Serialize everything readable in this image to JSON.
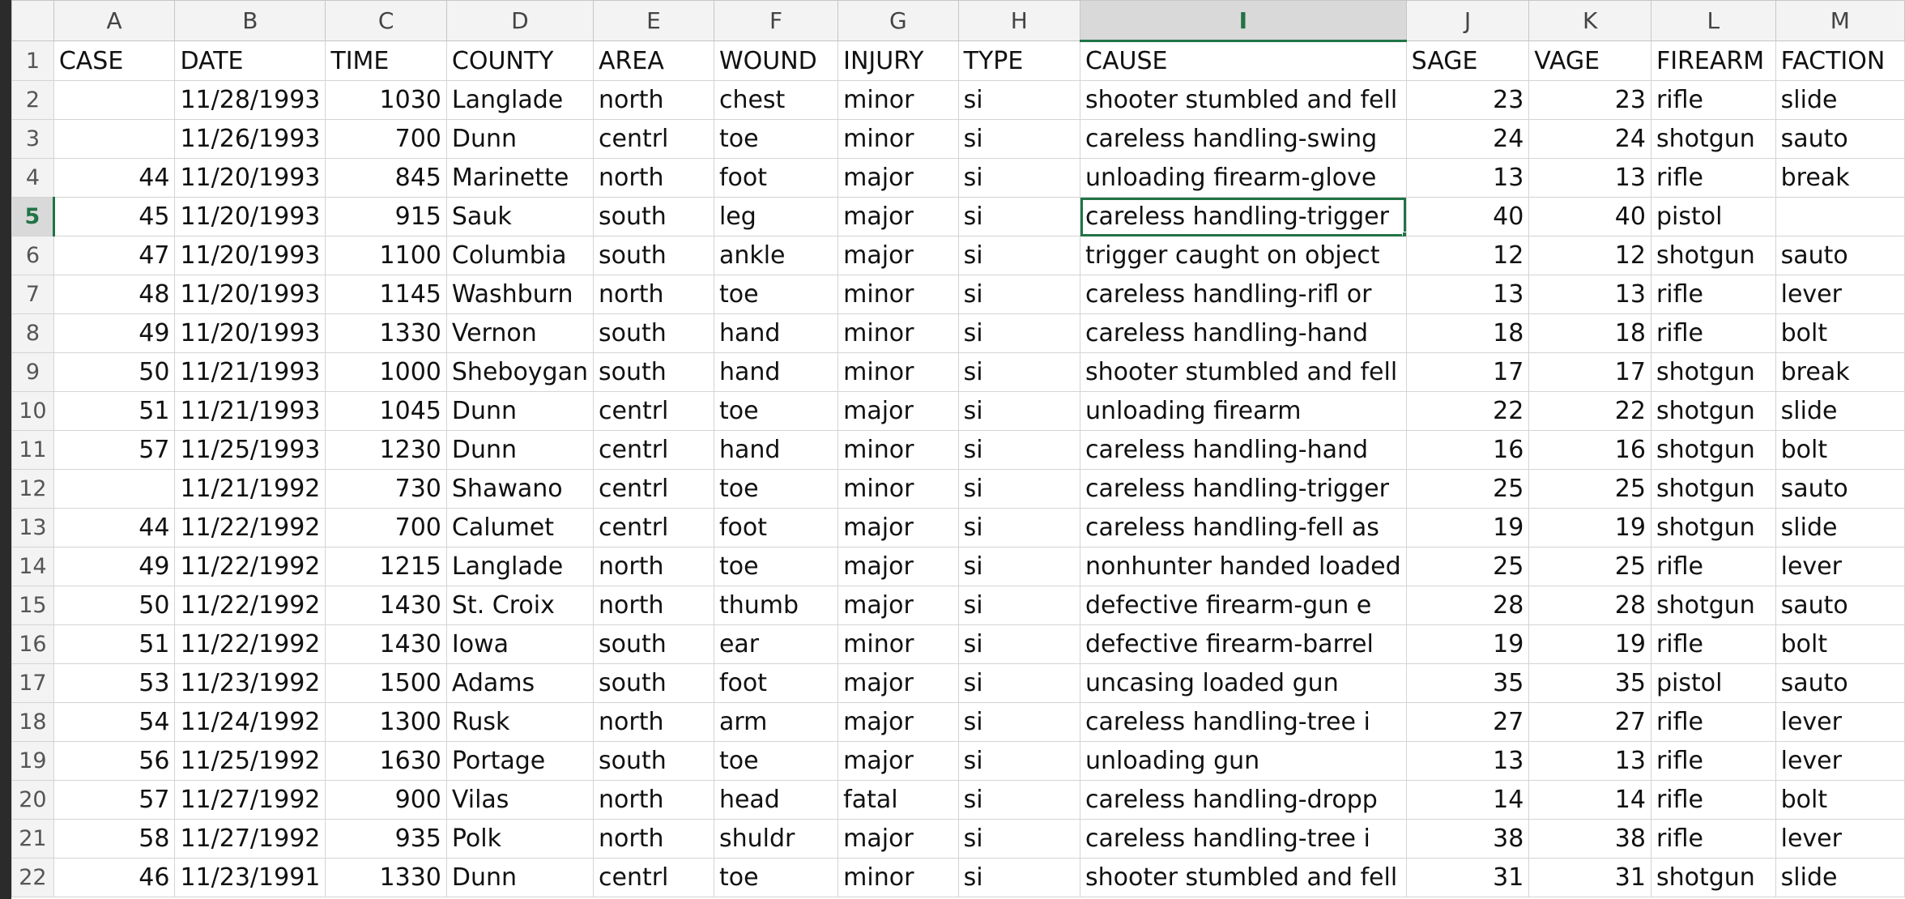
{
  "columns": [
    "A",
    "B",
    "C",
    "D",
    "E",
    "F",
    "G",
    "H",
    "I",
    "J",
    "K",
    "L",
    "M"
  ],
  "selected_column": "I",
  "selected_row": 5,
  "header_row": {
    "row_number": "1",
    "cells": [
      "CASE",
      "DATE",
      "TIME",
      "COUNTY",
      "AREA",
      "WOUND",
      "INJURY",
      "TYPE",
      "CAUSE",
      "SAGE",
      "VAGE",
      "FIREARM",
      "FACTION"
    ]
  },
  "rows": [
    {
      "n": "2",
      "c": [
        "",
        "11/28/1993",
        "1030",
        "Langlade",
        "north",
        "chest",
        "minor",
        "si",
        "shooter stumbled and fell",
        "23",
        "23",
        "rifle",
        "slide"
      ]
    },
    {
      "n": "3",
      "c": [
        "",
        "11/26/1993",
        "700",
        "Dunn",
        "centrl",
        "toe",
        "minor",
        "si",
        "careless handling-swing",
        "24",
        "24",
        "shotgun",
        "sauto"
      ]
    },
    {
      "n": "4",
      "c": [
        "44",
        "11/20/1993",
        "845",
        "Marinette",
        "north",
        "foot",
        "major",
        "si",
        "unloading firearm-glove",
        "13",
        "13",
        "rifle",
        "break"
      ]
    },
    {
      "n": "5",
      "c": [
        "45",
        "11/20/1993",
        "915",
        "Sauk",
        "south",
        "leg",
        "major",
        "si",
        "careless handling-trigger",
        "40",
        "40",
        "pistol",
        ""
      ]
    },
    {
      "n": "6",
      "c": [
        "47",
        "11/20/1993",
        "1100",
        "Columbia",
        "south",
        "ankle",
        "major",
        "si",
        "trigger caught on object",
        "12",
        "12",
        "shotgun",
        "sauto"
      ]
    },
    {
      "n": "7",
      "c": [
        "48",
        "11/20/1993",
        "1145",
        "Washburn",
        "north",
        "toe",
        "minor",
        "si",
        "careless handling-rifl or",
        "13",
        "13",
        "rifle",
        "lever"
      ]
    },
    {
      "n": "8",
      "c": [
        "49",
        "11/20/1993",
        "1330",
        "Vernon",
        "south",
        "hand",
        "minor",
        "si",
        "careless handling-hand",
        "18",
        "18",
        "rifle",
        "bolt"
      ]
    },
    {
      "n": "9",
      "c": [
        "50",
        "11/21/1993",
        "1000",
        "Sheboygan",
        "south",
        "hand",
        "minor",
        "si",
        "shooter stumbled and fell",
        "17",
        "17",
        "shotgun",
        "break"
      ]
    },
    {
      "n": "10",
      "c": [
        "51",
        "11/21/1993",
        "1045",
        "Dunn",
        "centrl",
        "toe",
        "major",
        "si",
        "unloading firearm",
        "22",
        "22",
        "shotgun",
        "slide"
      ]
    },
    {
      "n": "11",
      "c": [
        "57",
        "11/25/1993",
        "1230",
        "Dunn",
        "centrl",
        "hand",
        "minor",
        "si",
        "careless handling-hand",
        "16",
        "16",
        "shotgun",
        "bolt"
      ]
    },
    {
      "n": "12",
      "c": [
        "",
        "11/21/1992",
        "730",
        "Shawano",
        "centrl",
        "toe",
        "minor",
        "si",
        "careless handling-trigger",
        "25",
        "25",
        "shotgun",
        "sauto"
      ]
    },
    {
      "n": "13",
      "c": [
        "44",
        "11/22/1992",
        "700",
        "Calumet",
        "centrl",
        "foot",
        "major",
        "si",
        "careless handling-fell as",
        "19",
        "19",
        "shotgun",
        "slide"
      ]
    },
    {
      "n": "14",
      "c": [
        "49",
        "11/22/1992",
        "1215",
        "Langlade",
        "north",
        "toe",
        "major",
        "si",
        "nonhunter handed loaded",
        "25",
        "25",
        "rifle",
        "lever"
      ]
    },
    {
      "n": "15",
      "c": [
        "50",
        "11/22/1992",
        "1430",
        "St. Croix",
        "north",
        "thumb",
        "major",
        "si",
        "defective firearm-gun e",
        "28",
        "28",
        "shotgun",
        "sauto"
      ]
    },
    {
      "n": "16",
      "c": [
        "51",
        "11/22/1992",
        "1430",
        "Iowa",
        "south",
        "ear",
        "minor",
        "si",
        "defective firearm-barrel",
        "19",
        "19",
        "rifle",
        "bolt"
      ]
    },
    {
      "n": "17",
      "c": [
        "53",
        "11/23/1992",
        "1500",
        "Adams",
        "south",
        "foot",
        "major",
        "si",
        "uncasing loaded gun",
        "35",
        "35",
        "pistol",
        "sauto"
      ]
    },
    {
      "n": "18",
      "c": [
        "54",
        "11/24/1992",
        "1300",
        "Rusk",
        "north",
        "arm",
        "major",
        "si",
        "careless handling-tree i",
        "27",
        "27",
        "rifle",
        "lever"
      ]
    },
    {
      "n": "19",
      "c": [
        "56",
        "11/25/1992",
        "1630",
        "Portage",
        "south",
        "toe",
        "major",
        "si",
        "unloading gun",
        "13",
        "13",
        "rifle",
        "lever"
      ]
    },
    {
      "n": "20",
      "c": [
        "57",
        "11/27/1992",
        "900",
        "Vilas",
        "north",
        "head",
        "fatal",
        "si",
        "careless handling-dropp",
        "14",
        "14",
        "rifle",
        "bolt"
      ]
    },
    {
      "n": "21",
      "c": [
        "58",
        "11/27/1992",
        "935",
        "Polk",
        "north",
        "shuldr",
        "major",
        "si",
        "careless handling-tree i",
        "38",
        "38",
        "rifle",
        "lever"
      ]
    },
    {
      "n": "22",
      "c": [
        "46",
        "11/23/1991",
        "1330",
        "Dunn",
        "centrl",
        "toe",
        "minor",
        "si",
        "shooter stumbled and fell",
        "31",
        "31",
        "shotgun",
        "slide"
      ]
    }
  ]
}
